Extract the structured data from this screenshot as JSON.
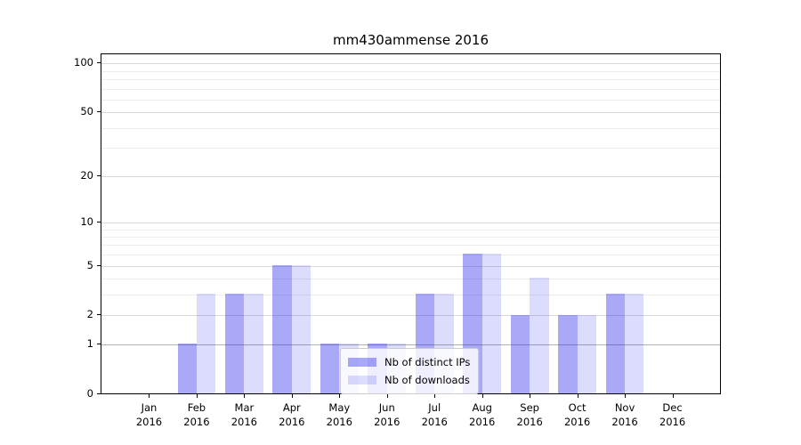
{
  "chart": {
    "background": "#ffffff",
    "axis_color": "#000000",
    "grid_major_color": "#d9d9d9",
    "grid_minor_color": "#ececec",
    "grid_unit_line_color": "#b0b0b0",
    "legend_frame_color": "#cccccc"
  },
  "chart_data": {
    "type": "bar",
    "title": "mm430ammense 2016",
    "categories": [
      "Jan 2016",
      "Feb 2016",
      "Mar 2016",
      "Apr 2016",
      "May 2016",
      "Jun 2016",
      "Jul 2016",
      "Aug 2016",
      "Sep 2016",
      "Oct 2016",
      "Nov 2016",
      "Dec 2016"
    ],
    "series": [
      {
        "name": "Nb of distinct IPs",
        "key": "distinct-ips",
        "color": "rgba(40,40,235,0.40)",
        "values": [
          0,
          1,
          3,
          5,
          1,
          1,
          3,
          6,
          2,
          2,
          3,
          0
        ]
      },
      {
        "name": "Nb of downloads",
        "key": "downloads",
        "color": "rgba(40,40,235,0.16)",
        "values": [
          0,
          3,
          3,
          5,
          1,
          1,
          3,
          6,
          4,
          2,
          3,
          0
        ]
      }
    ],
    "xlabel": "",
    "ylabel": "",
    "yscale": "log1p",
    "yticks": [
      0,
      1,
      2,
      5,
      10,
      20,
      50,
      100
    ],
    "minor_gridlines": [
      3,
      4,
      6,
      7,
      8,
      9,
      30,
      40,
      60,
      70,
      80,
      90
    ],
    "ylim": [
      0,
      115
    ],
    "grid": true,
    "legend_position": "lower center"
  }
}
